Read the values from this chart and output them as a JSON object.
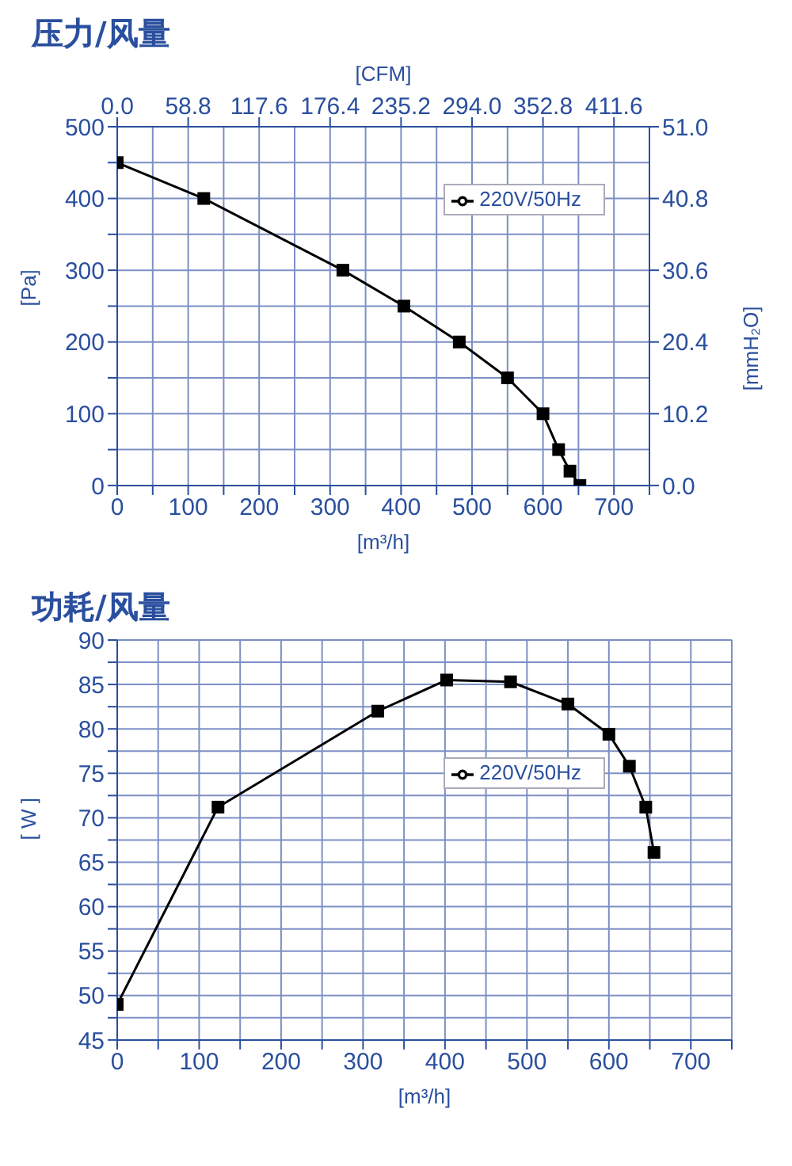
{
  "chart_data": [
    {
      "type": "line",
      "title": "压力/风量",
      "xlabel": "[m³/h]",
      "x2label": "[CFM]",
      "ylabel": "[Pa]",
      "y2label": "[mmH₂O]",
      "xlim": [
        0,
        750
      ],
      "xticks": [
        0,
        {
          "value": 50,
          "label": null
        },
        100,
        {
          "value": 150,
          "label": null
        },
        200,
        {
          "value": 250,
          "label": null
        },
        300,
        {
          "value": 350,
          "label": null
        },
        400,
        {
          "value": 450,
          "label": null
        },
        500,
        {
          "value": 550,
          "label": null
        },
        600,
        {
          "value": 650,
          "label": null
        },
        700,
        {
          "value": 750,
          "label": null
        }
      ],
      "x2lim": [
        0,
        441
      ],
      "x2ticks": [
        {
          "value": 0,
          "label": "0.0"
        },
        58.8,
        117.6,
        176.4,
        235.2,
        {
          "value": 294,
          "label": "294.0"
        },
        352.8,
        411.6
      ],
      "ylim": [
        0,
        500
      ],
      "yticks": [
        0,
        {
          "value": 50,
          "label": null
        },
        100,
        {
          "value": 150,
          "label": null
        },
        200,
        {
          "value": 250,
          "label": null
        },
        300,
        {
          "value": 350,
          "label": null
        },
        400,
        {
          "value": 450,
          "label": null
        },
        500
      ],
      "y2lim": [
        0,
        51
      ],
      "y2ticks": [
        {
          "value": 0,
          "label": "0.0"
        },
        10.2,
        20.4,
        30.6,
        40.8,
        {
          "value": 51,
          "label": "51.0"
        }
      ],
      "grid": true,
      "legend": "top right",
      "marker": "square",
      "series": [
        {
          "name": "220V/50Hz",
          "color": "#000000",
          "x": [
            0,
            122,
            318,
            404,
            482,
            550,
            600,
            622,
            638,
            652
          ],
          "values": [
            450,
            400,
            300,
            250,
            200,
            150,
            100,
            50,
            20,
            0
          ]
        }
      ]
    },
    {
      "type": "line",
      "title": "功耗/风量",
      "xlabel": "[m³/h]",
      "ylabel": "[ W ]",
      "xlim": [
        0,
        750
      ],
      "xticks": [
        0,
        {
          "value": 50,
          "label": null
        },
        100,
        {
          "value": 150,
          "label": null
        },
        200,
        {
          "value": 250,
          "label": null
        },
        300,
        {
          "value": 350,
          "label": null
        },
        400,
        {
          "value": 450,
          "label": null
        },
        500,
        {
          "value": 550,
          "label": null
        },
        600,
        {
          "value": 650,
          "label": null
        },
        700,
        {
          "value": 750,
          "label": null
        }
      ],
      "ylim": [
        45,
        90
      ],
      "yticks": [
        45,
        {
          "value": 47.5,
          "label": null
        },
        50,
        {
          "value": 52.5,
          "label": null
        },
        55,
        {
          "value": 57.5,
          "label": null
        },
        60,
        {
          "value": 62.5,
          "label": null
        },
        65,
        {
          "value": 67.5,
          "label": null
        },
        70,
        {
          "value": 72.5,
          "label": null
        },
        75,
        {
          "value": 77.5,
          "label": null
        },
        80,
        {
          "value": 82.5,
          "label": null
        },
        85,
        {
          "value": 87.5,
          "label": null
        },
        90
      ],
      "grid": true,
      "legend": "top right",
      "marker": "square",
      "series": [
        {
          "name": "220V/50Hz",
          "color": "#000000",
          "x": [
            0,
            123,
            318,
            402,
            480,
            550,
            600,
            625,
            645,
            655
          ],
          "values": [
            49,
            71.2,
            82,
            85.5,
            85.3,
            82.8,
            79.4,
            75.8,
            71.2,
            66.1
          ]
        }
      ]
    }
  ]
}
